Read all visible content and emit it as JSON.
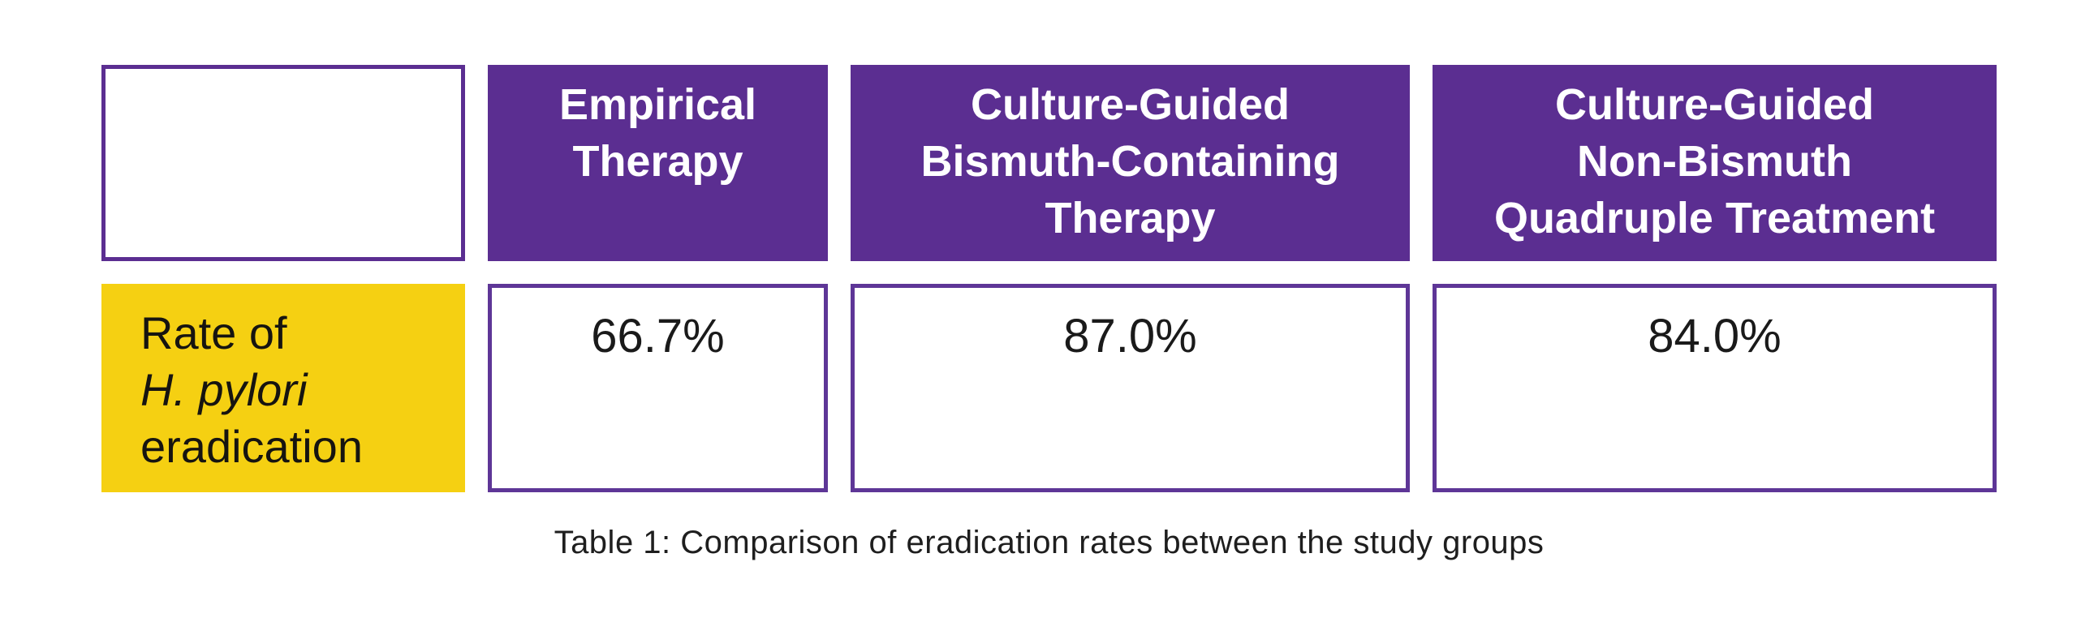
{
  "figure": {
    "caption": "Table 1: Comparison of eradication rates between the study groups",
    "colors": {
      "header_fill_purple": "#5b2e91",
      "cell_border_purple": "#5e3697",
      "row_label_yellow": "#f5d012",
      "header_text": "#ffffff",
      "body_text": "#1a1a1a",
      "background": "#ffffff"
    },
    "columns": [
      {
        "lines": [
          "Empirical",
          "Therapy"
        ]
      },
      {
        "lines": [
          "Culture-Guided",
          "Bismuth-Containing",
          "Therapy"
        ]
      },
      {
        "lines": [
          "Culture-Guided",
          "Non-Bismuth",
          "Quadruple Treatment"
        ]
      }
    ],
    "row": {
      "label_lines": [
        "Rate of",
        "H. pylori",
        "eradication"
      ],
      "values": [
        "66.7%",
        "87.0%",
        "84.0%"
      ]
    }
  },
  "chart_data": {
    "type": "table",
    "title": "Table 1: Comparison of eradication rates between the study groups",
    "columns": [
      "Empirical Therapy",
      "Culture-Guided Bismuth-Containing Therapy",
      "Culture-Guided Non-Bismuth Quadruple Treatment"
    ],
    "rows": [
      {
        "label": "Rate of H. pylori eradication",
        "values_percent": [
          66.7,
          87.0,
          84.0
        ]
      }
    ]
  }
}
